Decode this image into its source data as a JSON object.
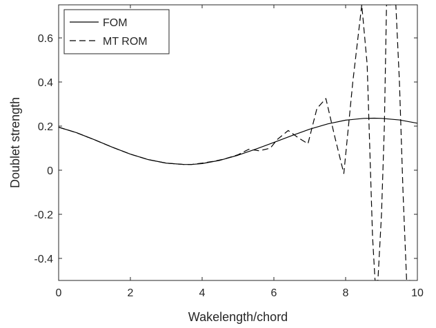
{
  "chart_data": {
    "type": "line",
    "title": "",
    "xlabel": "Wakelength/chord",
    "ylabel": "Doublet strength",
    "xlim": [
      0,
      10
    ],
    "ylim": [
      -0.5,
      0.75
    ],
    "xticks": [
      0,
      2,
      4,
      6,
      8,
      10
    ],
    "xtick_labels": [
      "0",
      "2",
      "4",
      "6",
      "8",
      "10"
    ],
    "yticks": [
      -0.4,
      -0.2,
      0,
      0.2,
      0.4,
      0.6
    ],
    "ytick_labels": [
      "-0.4",
      "-0.2",
      "0",
      "0.2",
      "0.4",
      "0.6"
    ],
    "grid": false,
    "legend_position": "top-left",
    "series": [
      {
        "name": "FOM",
        "line_style": "solid",
        "color": "#000000",
        "x": [
          0,
          0.5,
          1,
          1.5,
          2,
          2.5,
          3,
          3.5,
          3.7,
          4,
          4.5,
          5,
          5.5,
          6,
          6.5,
          7,
          7.5,
          8,
          8.5,
          8.8,
          9,
          9.5,
          10
        ],
        "y": [
          0.195,
          0.17,
          0.138,
          0.104,
          0.073,
          0.048,
          0.032,
          0.026,
          0.026,
          0.03,
          0.045,
          0.068,
          0.096,
          0.126,
          0.157,
          0.186,
          0.21,
          0.227,
          0.235,
          0.236,
          0.235,
          0.228,
          0.213
        ]
      },
      {
        "name": "MT ROM",
        "line_style": "dashed",
        "color": "#000000",
        "x": [
          0,
          0.5,
          1,
          1.5,
          2,
          2.5,
          3,
          3.5,
          3.7,
          4,
          4.3,
          4.6,
          5,
          5.3,
          5.6,
          5.9,
          6.1,
          6.4,
          6.7,
          6.95,
          7.2,
          7.45,
          7.7,
          7.95,
          8.2,
          8.45,
          8.6,
          8.75,
          8.82,
          8.9,
          9.0,
          9.08,
          9.14,
          9.2,
          9.3,
          9.4,
          9.5,
          9.6,
          9.7,
          9.8
        ],
        "y": [
          0.195,
          0.17,
          0.138,
          0.104,
          0.073,
          0.048,
          0.032,
          0.026,
          0.026,
          0.032,
          0.04,
          0.05,
          0.07,
          0.095,
          0.088,
          0.1,
          0.14,
          0.18,
          0.145,
          0.12,
          0.28,
          0.325,
          0.15,
          -0.015,
          0.4,
          0.75,
          0.48,
          -0.3,
          -0.5,
          -0.5,
          -0.2,
          0.2,
          0.75,
          0.75,
          0.75,
          0.75,
          0.4,
          -0.1,
          -0.5,
          -0.5
        ]
      }
    ]
  }
}
